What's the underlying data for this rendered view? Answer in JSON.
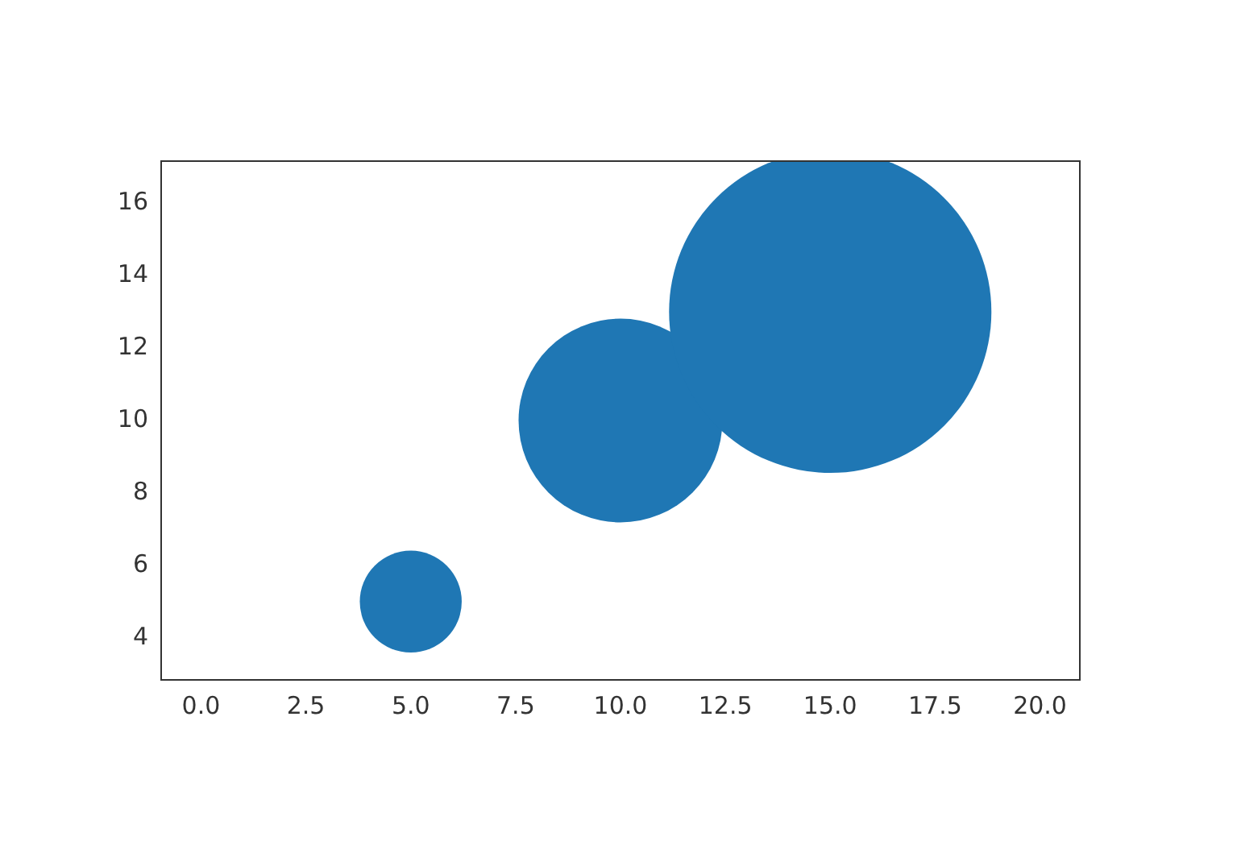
{
  "chart_data": {
    "type": "bubble",
    "x": [
      5,
      10,
      15
    ],
    "values": [
      5,
      10,
      13
    ],
    "sizes": [
      0.1,
      0.4,
      1
    ],
    "color": "#1f77b4",
    "xlim": [
      -0.95,
      20.95
    ],
    "xticks": [
      {
        "value": 0,
        "label": "0.0"
      },
      {
        "value": 2.5,
        "label": "2.5"
      },
      {
        "value": 5,
        "label": "5.0"
      },
      {
        "value": 7.5,
        "label": "7.5"
      },
      {
        "value": 10,
        "label": "10.0"
      },
      {
        "value": 12.5,
        "label": "12.5"
      },
      {
        "value": 15,
        "label": "15.0"
      },
      {
        "value": 17.5,
        "label": "17.5"
      },
      {
        "value": 20,
        "label": "20.0"
      }
    ],
    "ylim": [
      2.84,
      17.16
    ],
    "yticks": [
      4,
      6,
      8,
      10,
      12,
      14,
      16
    ],
    "grid": false,
    "legend": false
  }
}
